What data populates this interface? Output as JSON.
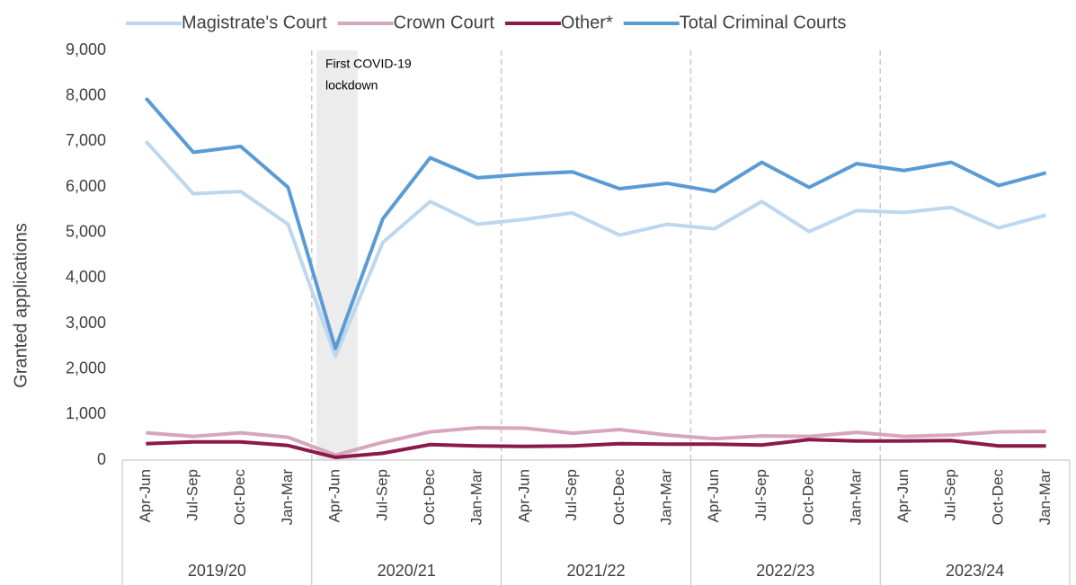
{
  "chart_data": {
    "type": "line",
    "y_axis_label": "Granted applications",
    "annotation": [
      "First COVID-19",
      "lockdown"
    ],
    "categories": [
      "Apr-Jun",
      "Jul-Sep",
      "Oct-Dec",
      "Jan-Mar",
      "Apr-Jun",
      "Jul-Sep",
      "Oct-Dec",
      "Jan-Mar",
      "Apr-Jun",
      "Jul-Sep",
      "Oct-Dec",
      "Jan-Mar",
      "Apr-Jun",
      "Jul-Sep",
      "Oct-Dec",
      "Jan-Mar",
      "Apr-Jun",
      "Jul-Sep",
      "Oct-Dec",
      "Jan-Mar"
    ],
    "groups": [
      "2019/20",
      "2020/21",
      "2021/22",
      "2022/23",
      "2023/24"
    ],
    "series": [
      {
        "name": "Magistrate's Court",
        "color": "#bdd7ee",
        "values": [
          7000,
          5850,
          5900,
          5180,
          2280,
          4780,
          5680,
          5180,
          5290,
          5430,
          4940,
          5180,
          5080,
          5680,
          5020,
          5480,
          5440,
          5550,
          5100,
          5380
        ]
      },
      {
        "name": "Crown Court",
        "color": "#d5a6bd",
        "values": [
          600,
          520,
          600,
          500,
          110,
          390,
          620,
          710,
          700,
          590,
          670,
          550,
          470,
          530,
          520,
          610,
          520,
          550,
          620,
          630
        ]
      },
      {
        "name": "Other*",
        "color": "#8b1a4a",
        "values": [
          360,
          400,
          400,
          320,
          60,
          150,
          340,
          310,
          300,
          310,
          360,
          350,
          350,
          330,
          450,
          420,
          420,
          430,
          310,
          310
        ]
      },
      {
        "name": "Total Criminal Courts",
        "color": "#5b9bd5",
        "values": [
          7950,
          6760,
          6890,
          5990,
          2450,
          5300,
          6640,
          6200,
          6280,
          6330,
          5960,
          6080,
          5900,
          6540,
          5990,
          6510,
          6360,
          6540,
          6030,
          6310
        ]
      }
    ],
    "ylim": [
      0,
      9000
    ],
    "yticks": [
      0,
      {
        "value": 1000,
        "label": "1,000"
      },
      {
        "value": 2000,
        "label": "2,000"
      },
      {
        "value": 3000,
        "label": "3,000"
      },
      {
        "value": 4000,
        "label": "4,000"
      },
      {
        "value": 5000,
        "label": "5,000"
      },
      {
        "value": 6000,
        "label": "6,000"
      },
      {
        "value": 7000,
        "label": "7,000"
      },
      {
        "value": 8000,
        "label": "8,000"
      },
      {
        "value": 9000,
        "label": "9,000"
      }
    ]
  }
}
